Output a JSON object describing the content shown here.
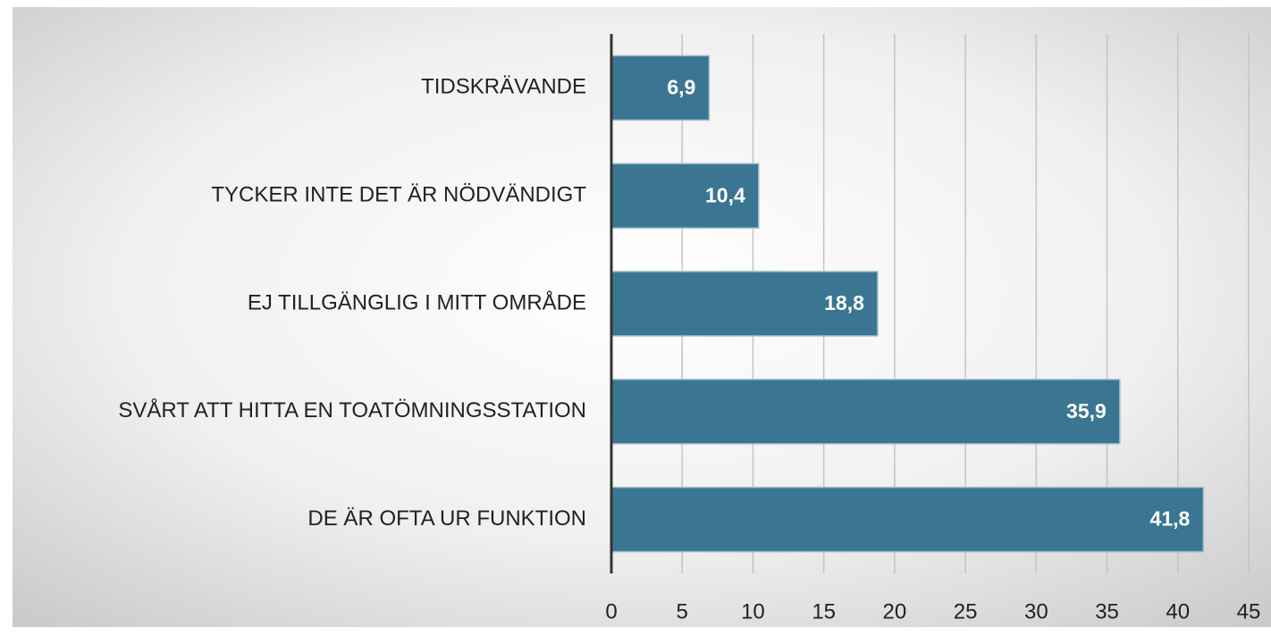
{
  "chart_data": {
    "type": "barh",
    "categories": [
      "TIDSKRÄVANDE",
      "TYCKER INTE DET ÄR NÖDVÄNDIGT",
      "EJ TILLGÄNGLIG I MITT OMRÅDE",
      "SVÅRT ATT HITTA EN TOATÖMNINGSSTATION",
      "DE ÄR OFTA UR FUNKTION"
    ],
    "values": [
      6.9,
      10.4,
      18.8,
      35.9,
      41.8
    ],
    "value_labels": [
      "6,9",
      "10,4",
      "18,8",
      "35,9",
      "41,8"
    ],
    "color": "#3a7691",
    "xlim": [
      0,
      45
    ],
    "xticks": [
      0,
      5,
      10,
      15,
      20,
      25,
      30,
      35,
      40,
      45
    ],
    "grid": true
  }
}
